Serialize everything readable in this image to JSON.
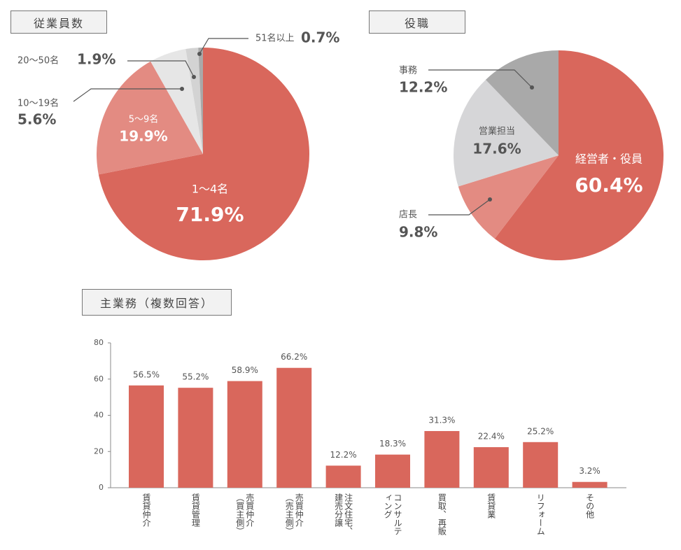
{
  "chart_data": [
    {
      "type": "pie",
      "title": "従業員数",
      "categories": [
        "1〜4名",
        "5〜9名",
        "10〜19名",
        "20〜50名",
        "51名以上"
      ],
      "values": [
        71.9,
        19.9,
        5.6,
        1.9,
        0.7
      ],
      "value_labels": [
        "71.9%",
        "19.9%",
        "5.6%",
        "1.9%",
        "0.7%"
      ],
      "colors": [
        "#d9675c",
        "#e38b82",
        "#e6e6e6",
        "#d3d3d3",
        "#a9a9a9"
      ]
    },
    {
      "type": "pie",
      "title": "役職",
      "categories": [
        "経営者・役員",
        "店長",
        "営業担当",
        "事務"
      ],
      "values": [
        60.4,
        9.8,
        17.6,
        12.2
      ],
      "value_labels": [
        "60.4%",
        "9.8%",
        "17.6%",
        "12.2%"
      ],
      "colors": [
        "#d9675c",
        "#e38b82",
        "#d6d6d8",
        "#a9a9a9"
      ]
    },
    {
      "type": "bar",
      "title": "主業務（複数回答）",
      "categories": [
        "賃貸仲介",
        "賃貸管理",
        "売買仲介（買主側）",
        "売買仲介（売主側）",
        "注文住宅、建売分譲",
        "コンサルティング",
        "買取、再販",
        "賃貸業",
        "リフォーム",
        "その他"
      ],
      "values": [
        56.5,
        55.2,
        58.9,
        66.2,
        12.2,
        18.3,
        31.3,
        22.4,
        25.2,
        3.2
      ],
      "value_labels": [
        "56.5%",
        "55.2%",
        "58.9%",
        "66.2%",
        "12.2%",
        "18.3%",
        "31.3%",
        "22.4%",
        "25.2%",
        "3.2%"
      ],
      "color": "#d9675c",
      "ylim": [
        0,
        80
      ],
      "yticks": [
        0,
        20,
        40,
        60,
        80
      ]
    }
  ]
}
